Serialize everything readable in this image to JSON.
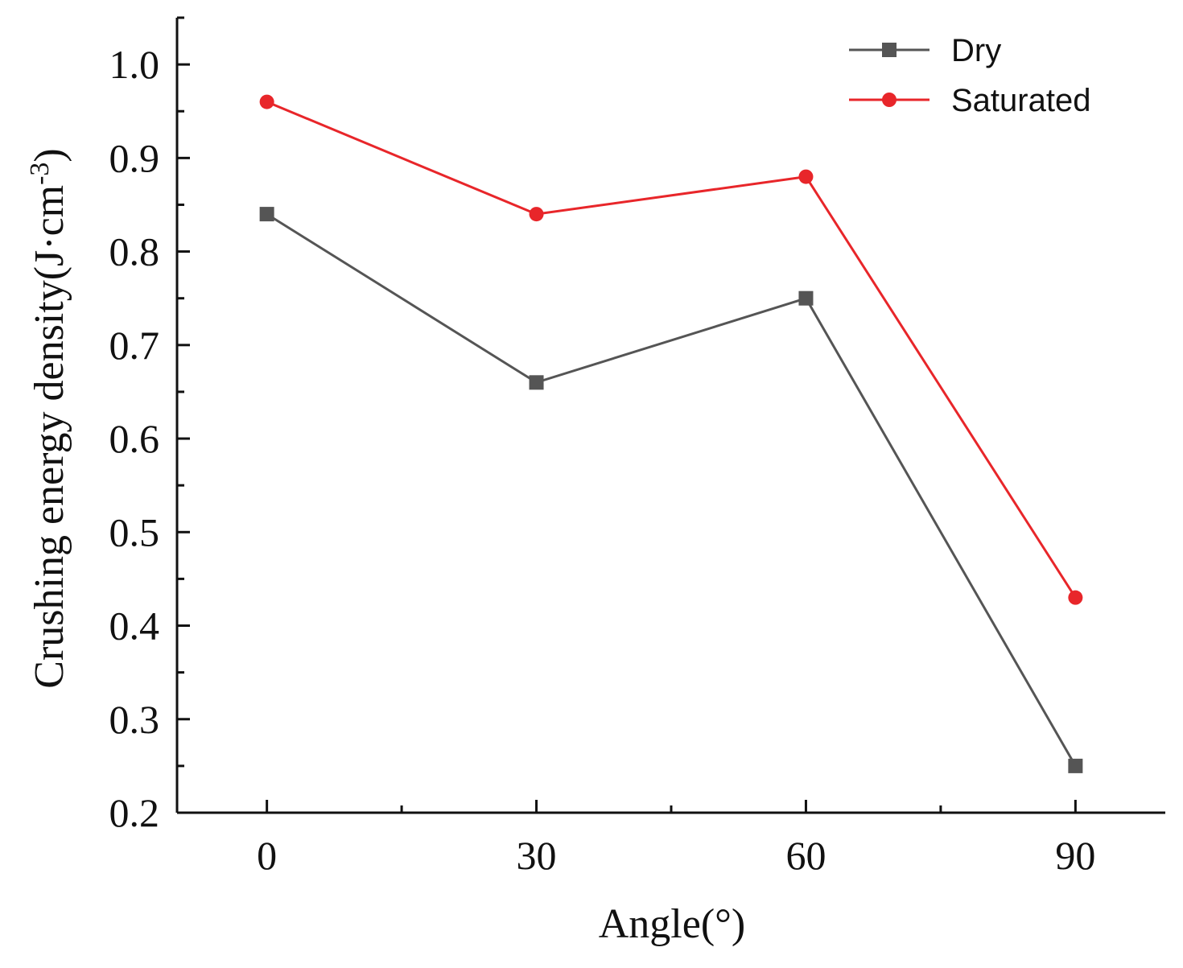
{
  "chart_data": {
    "type": "line",
    "x": [
      0,
      30,
      60,
      90
    ],
    "x_tick_labels": [
      "0",
      "30",
      "60",
      "90"
    ],
    "xlim": [
      -10,
      100
    ],
    "ylim": [
      0.2,
      1.05
    ],
    "y_ticks": [
      0.2,
      0.3,
      0.4,
      0.5,
      0.6,
      0.7,
      0.8,
      0.9,
      1.0
    ],
    "y_tick_labels": [
      "0.2",
      "0.3",
      "0.4",
      "0.5",
      "0.6",
      "0.7",
      "0.8",
      "0.9",
      "1.0"
    ],
    "xlabel": "Angle(°)",
    "ylabel": "Crushing energy density(J·cm",
    "ylabel_superscript": "-3",
    "ylabel_suffix": ")",
    "legend_position": "top-right",
    "grid": false,
    "series": [
      {
        "name": "Dry",
        "values": [
          0.84,
          0.66,
          0.75,
          0.25
        ],
        "color": "#555555",
        "marker": "square"
      },
      {
        "name": "Saturated",
        "values": [
          0.96,
          0.84,
          0.88,
          0.43
        ],
        "color": "#e8262a",
        "marker": "circle"
      }
    ]
  }
}
